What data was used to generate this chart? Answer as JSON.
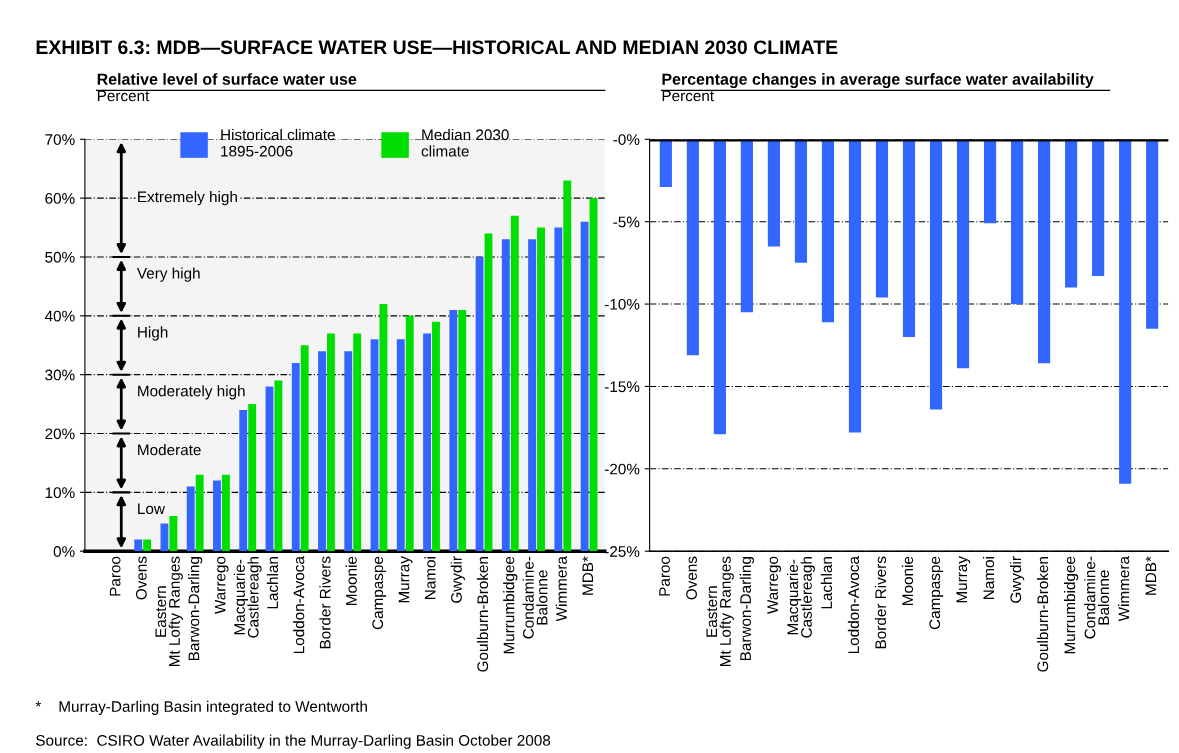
{
  "chart_data": [
    {
      "type": "bar",
      "title": "EXHIBIT 6.3: MDB—SURFACE WATER USE—HISTORICAL AND MEDIAN 2030 CLIMATE",
      "subtitle": "Relative level of surface water use",
      "ylabel": "Percent",
      "categories": [
        "Paroo",
        "Ovens",
        "Eastern\nMt Lofty Ranges",
        "Barwon-Darling",
        "Warrego",
        "Macquarie-\nCastlereagh",
        "Lachlan",
        "Loddon-Avoca",
        "Border Rivers",
        "Moonie",
        "Campaspe",
        "Murray",
        "Namoi",
        "Gwydir",
        "Goulburn-Broken",
        "Murrumbidgee",
        "Condamine-\nBalonne",
        "Wimmera",
        "MDB*"
      ],
      "series": [
        {
          "name": "Historical climate\n1895-2006",
          "color": "#3366ff",
          "values": [
            null,
            2,
            4.7,
            11,
            12,
            24,
            28,
            32,
            34,
            34,
            36,
            36,
            37,
            41,
            50,
            53,
            53,
            55,
            56
          ]
        },
        {
          "name": "Median 2030\nclimate",
          "color": "#00dd00",
          "values": [
            null,
            2,
            6,
            13,
            13,
            25,
            29,
            35,
            37,
            37,
            42,
            40,
            39,
            41,
            54,
            57,
            55,
            63,
            60
          ]
        }
      ],
      "ylim": [
        0,
        70
      ],
      "yticks": [
        {
          "value": 0,
          "label": "0%"
        },
        {
          "value": 10,
          "label": "10%"
        },
        {
          "value": 20,
          "label": "20%"
        },
        {
          "value": 30,
          "label": "30%"
        },
        {
          "value": 40,
          "label": "40%"
        },
        {
          "value": 50,
          "label": "50%"
        },
        {
          "value": 60,
          "label": "60%"
        },
        {
          "value": 70,
          "label": "70%"
        }
      ],
      "bands": [
        {
          "axis": "y",
          "from": 0,
          "to": 10,
          "label": "Low"
        },
        {
          "axis": "y",
          "from": 10,
          "to": 20,
          "label": "Moderate"
        },
        {
          "axis": "y",
          "from": 20,
          "to": 30,
          "label": "Moderately high"
        },
        {
          "axis": "y",
          "from": 30,
          "to": 40,
          "label": "High"
        },
        {
          "axis": "y",
          "from": 40,
          "to": 50,
          "label": "Very high"
        },
        {
          "axis": "y",
          "from": 50,
          "to": 70,
          "label": "Extremely high"
        }
      ],
      "grid": "y",
      "legend": "top",
      "annotations": [
        "*    Murray-Darling Basin integrated to Wentworth",
        "Source:  CSIRO Water Availability in the Murray-Darling Basin October 2008"
      ]
    },
    {
      "type": "bar",
      "title": "Percentage changes in average surface water availability",
      "ylabel": "Percent",
      "categories": [
        "Paroo",
        "Ovens",
        "Eastern\nMt Lofty Ranges",
        "Barwon-Darling",
        "Warrego",
        "Macquarie-\nCastlereagh",
        "Lachlan",
        "Loddon-Avoca",
        "Border Rivers",
        "Moonie",
        "Campaspe",
        "Murray",
        "Namoi",
        "Gwydir",
        "Goulburn-Broken",
        "Murrumbidgee",
        "Condamine-\nBalonne",
        "Wimmera",
        "MDB*"
      ],
      "series": [
        {
          "color": "#3366ff",
          "values": [
            -2.9,
            -13.1,
            -17.9,
            -10.5,
            -6.5,
            -7.5,
            -11.1,
            -17.8,
            -9.6,
            -12.0,
            -16.4,
            -13.9,
            -5.1,
            -10.0,
            -13.6,
            -9.0,
            -8.3,
            -20.9,
            -11.5
          ]
        }
      ],
      "ylim": [
        -25,
        0
      ],
      "yticks": [
        {
          "value": 0,
          "label": "-0%"
        },
        {
          "value": -5,
          "label": "-5%"
        },
        {
          "value": -10,
          "label": "-10%"
        },
        {
          "value": -15,
          "label": "-15%"
        },
        {
          "value": -20,
          "label": "-20%"
        },
        {
          "value": -25,
          "label": "-25%"
        }
      ],
      "ref_lines": [
        {
          "axis": "y",
          "value": 0,
          "color": "#000000"
        }
      ],
      "grid": "y"
    }
  ]
}
